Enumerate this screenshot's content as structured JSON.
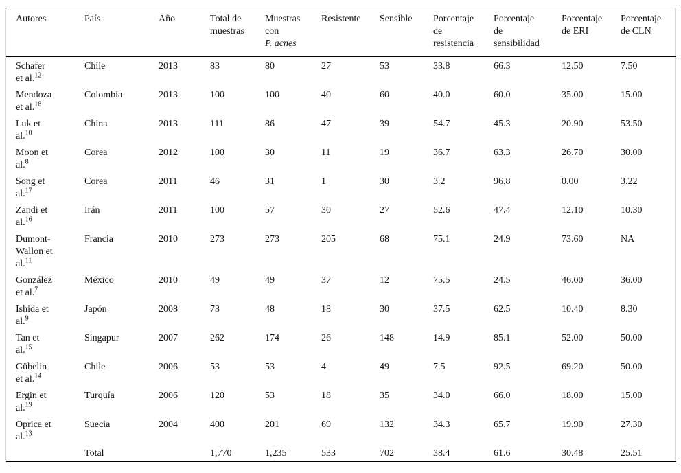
{
  "table": {
    "headers": [
      {
        "lines": [
          "Autores"
        ]
      },
      {
        "lines": [
          "País"
        ]
      },
      {
        "lines": [
          "Año"
        ]
      },
      {
        "lines": [
          "Total de",
          "muestras"
        ]
      },
      {
        "lines": [
          "Muestras",
          "con",
          "P. acnes"
        ],
        "italic_last": true
      },
      {
        "lines": [
          "Resistente"
        ]
      },
      {
        "lines": [
          "Sensible"
        ]
      },
      {
        "lines": [
          "Porcentaje",
          "de",
          "resistencia"
        ]
      },
      {
        "lines": [
          "Porcentaje",
          "de",
          "sensibilidad"
        ]
      },
      {
        "lines": [
          "Porcentaje",
          "de ERI"
        ]
      },
      {
        "lines": [
          "Porcentaje",
          "de CLN"
        ]
      }
    ],
    "rows": [
      {
        "author_lines": [
          "Schafer",
          "et al."
        ],
        "ref": "12",
        "pais": "Chile",
        "ano": "2013",
        "total": "83",
        "muestras": "80",
        "resistente": "27",
        "sensible": "53",
        "pct_resistencia": "33.8",
        "pct_sensibilidad": "66.3",
        "pct_eri": "12.50",
        "pct_cln": "7.50"
      },
      {
        "author_lines": [
          "Mendoza",
          "et al."
        ],
        "ref": "18",
        "pais": "Colombia",
        "ano": "2013",
        "total": "100",
        "muestras": "100",
        "resistente": "40",
        "sensible": "60",
        "pct_resistencia": "40.0",
        "pct_sensibilidad": "60.0",
        "pct_eri": "35.00",
        "pct_cln": "15.00"
      },
      {
        "author_lines": [
          "Luk et",
          "al."
        ],
        "ref": "10",
        "pais": "China",
        "ano": "2013",
        "total": "111",
        "muestras": "86",
        "resistente": "47",
        "sensible": "39",
        "pct_resistencia": "54.7",
        "pct_sensibilidad": "45.3",
        "pct_eri": "20.90",
        "pct_cln": "53.50"
      },
      {
        "author_lines": [
          "Moon et",
          "al."
        ],
        "ref": "8",
        "pais": "Corea",
        "ano": "2012",
        "total": "100",
        "muestras": "30",
        "resistente": "11",
        "sensible": "19",
        "pct_resistencia": "36.7",
        "pct_sensibilidad": "63.3",
        "pct_eri": "26.70",
        "pct_cln": "30.00"
      },
      {
        "author_lines": [
          "Song et",
          "al."
        ],
        "ref": "17",
        "pais": "Corea",
        "ano": "2011",
        "total": "46",
        "muestras": "31",
        "resistente": "1",
        "sensible": "30",
        "pct_resistencia": "3.2",
        "pct_sensibilidad": "96.8",
        "pct_eri": "0.00",
        "pct_cln": "3.22"
      },
      {
        "author_lines": [
          "Zandi et",
          "al."
        ],
        "ref": "16",
        "pais": "Irán",
        "ano": "2011",
        "total": "100",
        "muestras": "57",
        "resistente": "30",
        "sensible": "27",
        "pct_resistencia": "52.6",
        "pct_sensibilidad": "47.4",
        "pct_eri": "12.10",
        "pct_cln": "10.30"
      },
      {
        "author_lines": [
          "Dumont-",
          "Wallon et",
          "al."
        ],
        "ref": "11",
        "pais": "Francia",
        "ano": "2010",
        "total": "273",
        "muestras": "273",
        "resistente": "205",
        "sensible": "68",
        "pct_resistencia": "75.1",
        "pct_sensibilidad": "24.9",
        "pct_eri": "73.60",
        "pct_cln": "NA"
      },
      {
        "author_lines": [
          "González",
          "et al."
        ],
        "ref": "7",
        "pais": "México",
        "ano": "2010",
        "total": "49",
        "muestras": "49",
        "resistente": "37",
        "sensible": "12",
        "pct_resistencia": "75.5",
        "pct_sensibilidad": "24.5",
        "pct_eri": "46.00",
        "pct_cln": "36.00"
      },
      {
        "author_lines": [
          "Ishida et",
          "al."
        ],
        "ref": "9",
        "pais": "Japón",
        "ano": "2008",
        "total": "73",
        "muestras": "48",
        "resistente": "18",
        "sensible": "30",
        "pct_resistencia": "37.5",
        "pct_sensibilidad": "62.5",
        "pct_eri": "10.40",
        "pct_cln": "8.30"
      },
      {
        "author_lines": [
          "Tan et",
          "al."
        ],
        "ref": "15",
        "pais": "Singapur",
        "ano": "2007",
        "total": "262",
        "muestras": "174",
        "resistente": "26",
        "sensible": "148",
        "pct_resistencia": "14.9",
        "pct_sensibilidad": "85.1",
        "pct_eri": "52.00",
        "pct_cln": "50.00"
      },
      {
        "author_lines": [
          "Gübelin",
          "et al."
        ],
        "ref": "14",
        "pais": "Chile",
        "ano": "2006",
        "total": "53",
        "muestras": "53",
        "resistente": "4",
        "sensible": "49",
        "pct_resistencia": "7.5",
        "pct_sensibilidad": "92.5",
        "pct_eri": "69.20",
        "pct_cln": "50.00"
      },
      {
        "author_lines": [
          "Ergin et",
          "al."
        ],
        "ref": "19",
        "pais": "Turquía",
        "ano": "2006",
        "total": "120",
        "muestras": "53",
        "resistente": "18",
        "sensible": "35",
        "pct_resistencia": "34.0",
        "pct_sensibilidad": "66.0",
        "pct_eri": "18.00",
        "pct_cln": "15.00"
      },
      {
        "author_lines": [
          "Oprica et",
          "al."
        ],
        "ref": "13",
        "pais": "Suecia",
        "ano": "2004",
        "total": "400",
        "muestras": "201",
        "resistente": "69",
        "sensible": "132",
        "pct_resistencia": "34.3",
        "pct_sensibilidad": "65.7",
        "pct_eri": "19.90",
        "pct_cln": "27.30"
      },
      {
        "author_lines": [],
        "ref": "",
        "is_total": true,
        "pais": "Total",
        "ano": "",
        "total": "1,770",
        "muestras": "1,235",
        "resistente": "533",
        "sensible": "702",
        "pct_resistencia": "38.4",
        "pct_sensibilidad": "61.6",
        "pct_eri": "30.48",
        "pct_cln": "25.51"
      }
    ]
  }
}
